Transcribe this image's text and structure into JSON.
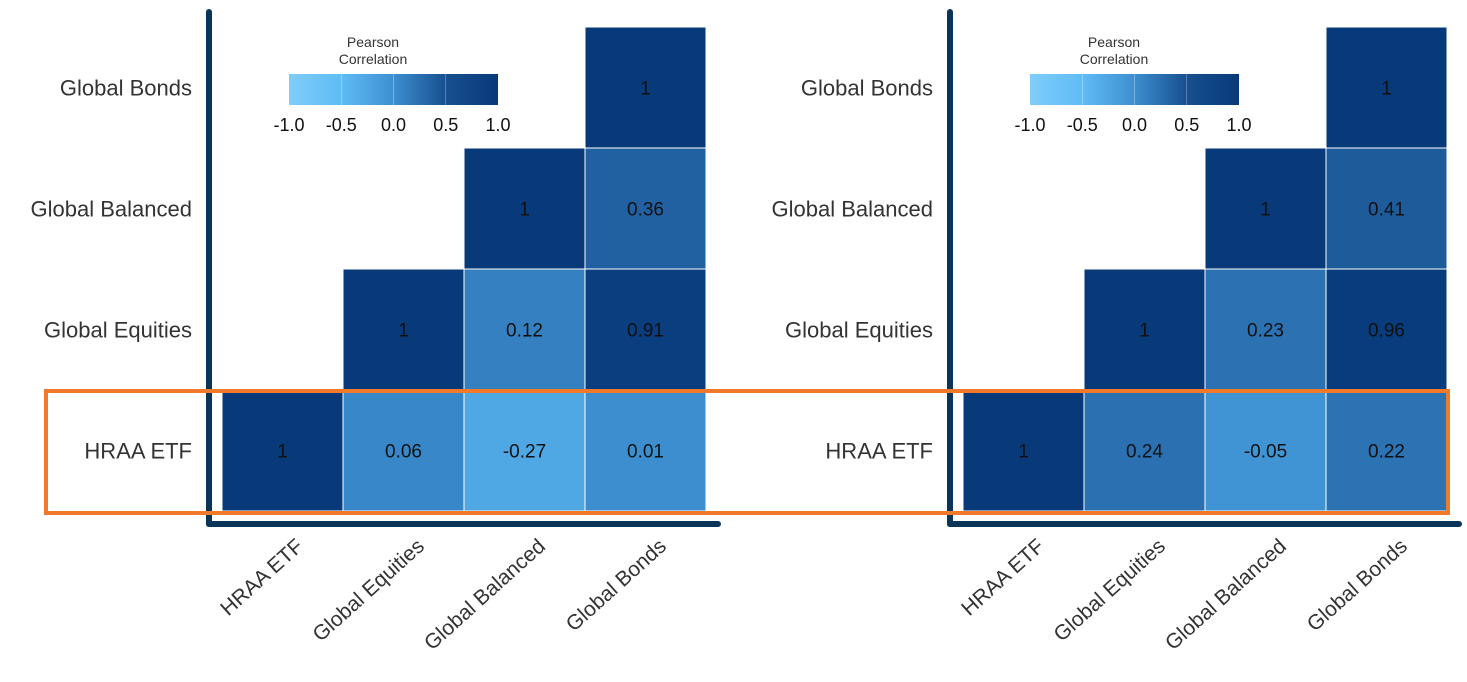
{
  "colorbar": {
    "title_line1": "Pearson",
    "title_line2": "Correlation",
    "ticks": [
      "-1.0",
      "-0.5",
      "0.0",
      "0.5",
      "1.0"
    ],
    "colors": [
      "#7fcdfb",
      "#5fbcf5",
      "#3d8fd0",
      "#174f8f",
      "#083a7a"
    ]
  },
  "colors": {
    "axis": "#0b3558",
    "highlight": "#f07a2a",
    "cell_text": "#111111",
    "label_text": "#333333"
  },
  "chart_data": [
    {
      "type": "heatmap",
      "rows": [
        "Global Bonds",
        "Global Balanced",
        "Global Equities",
        "HRAA ETF"
      ],
      "cols": [
        "HRAA ETF",
        "Global Equities",
        "Global Balanced",
        "Global Bonds"
      ],
      "cells": [
        {
          "row": 0,
          "col": 3,
          "value": 1,
          "label": "1"
        },
        {
          "row": 1,
          "col": 2,
          "value": 1,
          "label": "1"
        },
        {
          "row": 1,
          "col": 3,
          "value": 0.36,
          "label": "0.36"
        },
        {
          "row": 2,
          "col": 1,
          "value": 1,
          "label": "1"
        },
        {
          "row": 2,
          "col": 2,
          "value": 0.12,
          "label": "0.12"
        },
        {
          "row": 2,
          "col": 3,
          "value": 0.91,
          "label": "0.91"
        },
        {
          "row": 3,
          "col": 0,
          "value": 1,
          "label": "1"
        },
        {
          "row": 3,
          "col": 1,
          "value": 0.06,
          "label": "0.06"
        },
        {
          "row": 3,
          "col": 2,
          "value": -0.27,
          "label": "-0.27"
        },
        {
          "row": 3,
          "col": 3,
          "value": 0.01,
          "label": "0.01"
        }
      ],
      "value_range": [
        -1,
        1
      ],
      "legend": "top-left"
    },
    {
      "type": "heatmap",
      "rows": [
        "Global Bonds",
        "Global Balanced",
        "Global Equities",
        "HRAA ETF"
      ],
      "cols": [
        "HRAA ETF",
        "Global Equities",
        "Global Balanced",
        "Global Bonds"
      ],
      "cells": [
        {
          "row": 0,
          "col": 3,
          "value": 1,
          "label": "1"
        },
        {
          "row": 1,
          "col": 2,
          "value": 1,
          "label": "1"
        },
        {
          "row": 1,
          "col": 3,
          "value": 0.41,
          "label": "0.41"
        },
        {
          "row": 2,
          "col": 1,
          "value": 1,
          "label": "1"
        },
        {
          "row": 2,
          "col": 2,
          "value": 0.23,
          "label": "0.23"
        },
        {
          "row": 2,
          "col": 3,
          "value": 0.96,
          "label": "0.96"
        },
        {
          "row": 3,
          "col": 0,
          "value": 1,
          "label": "1"
        },
        {
          "row": 3,
          "col": 1,
          "value": 0.24,
          "label": "0.24"
        },
        {
          "row": 3,
          "col": 2,
          "value": -0.05,
          "label": "-0.05"
        },
        {
          "row": 3,
          "col": 3,
          "value": 0.22,
          "label": "0.22"
        }
      ],
      "value_range": [
        -1,
        1
      ],
      "legend": "top-left"
    }
  ]
}
